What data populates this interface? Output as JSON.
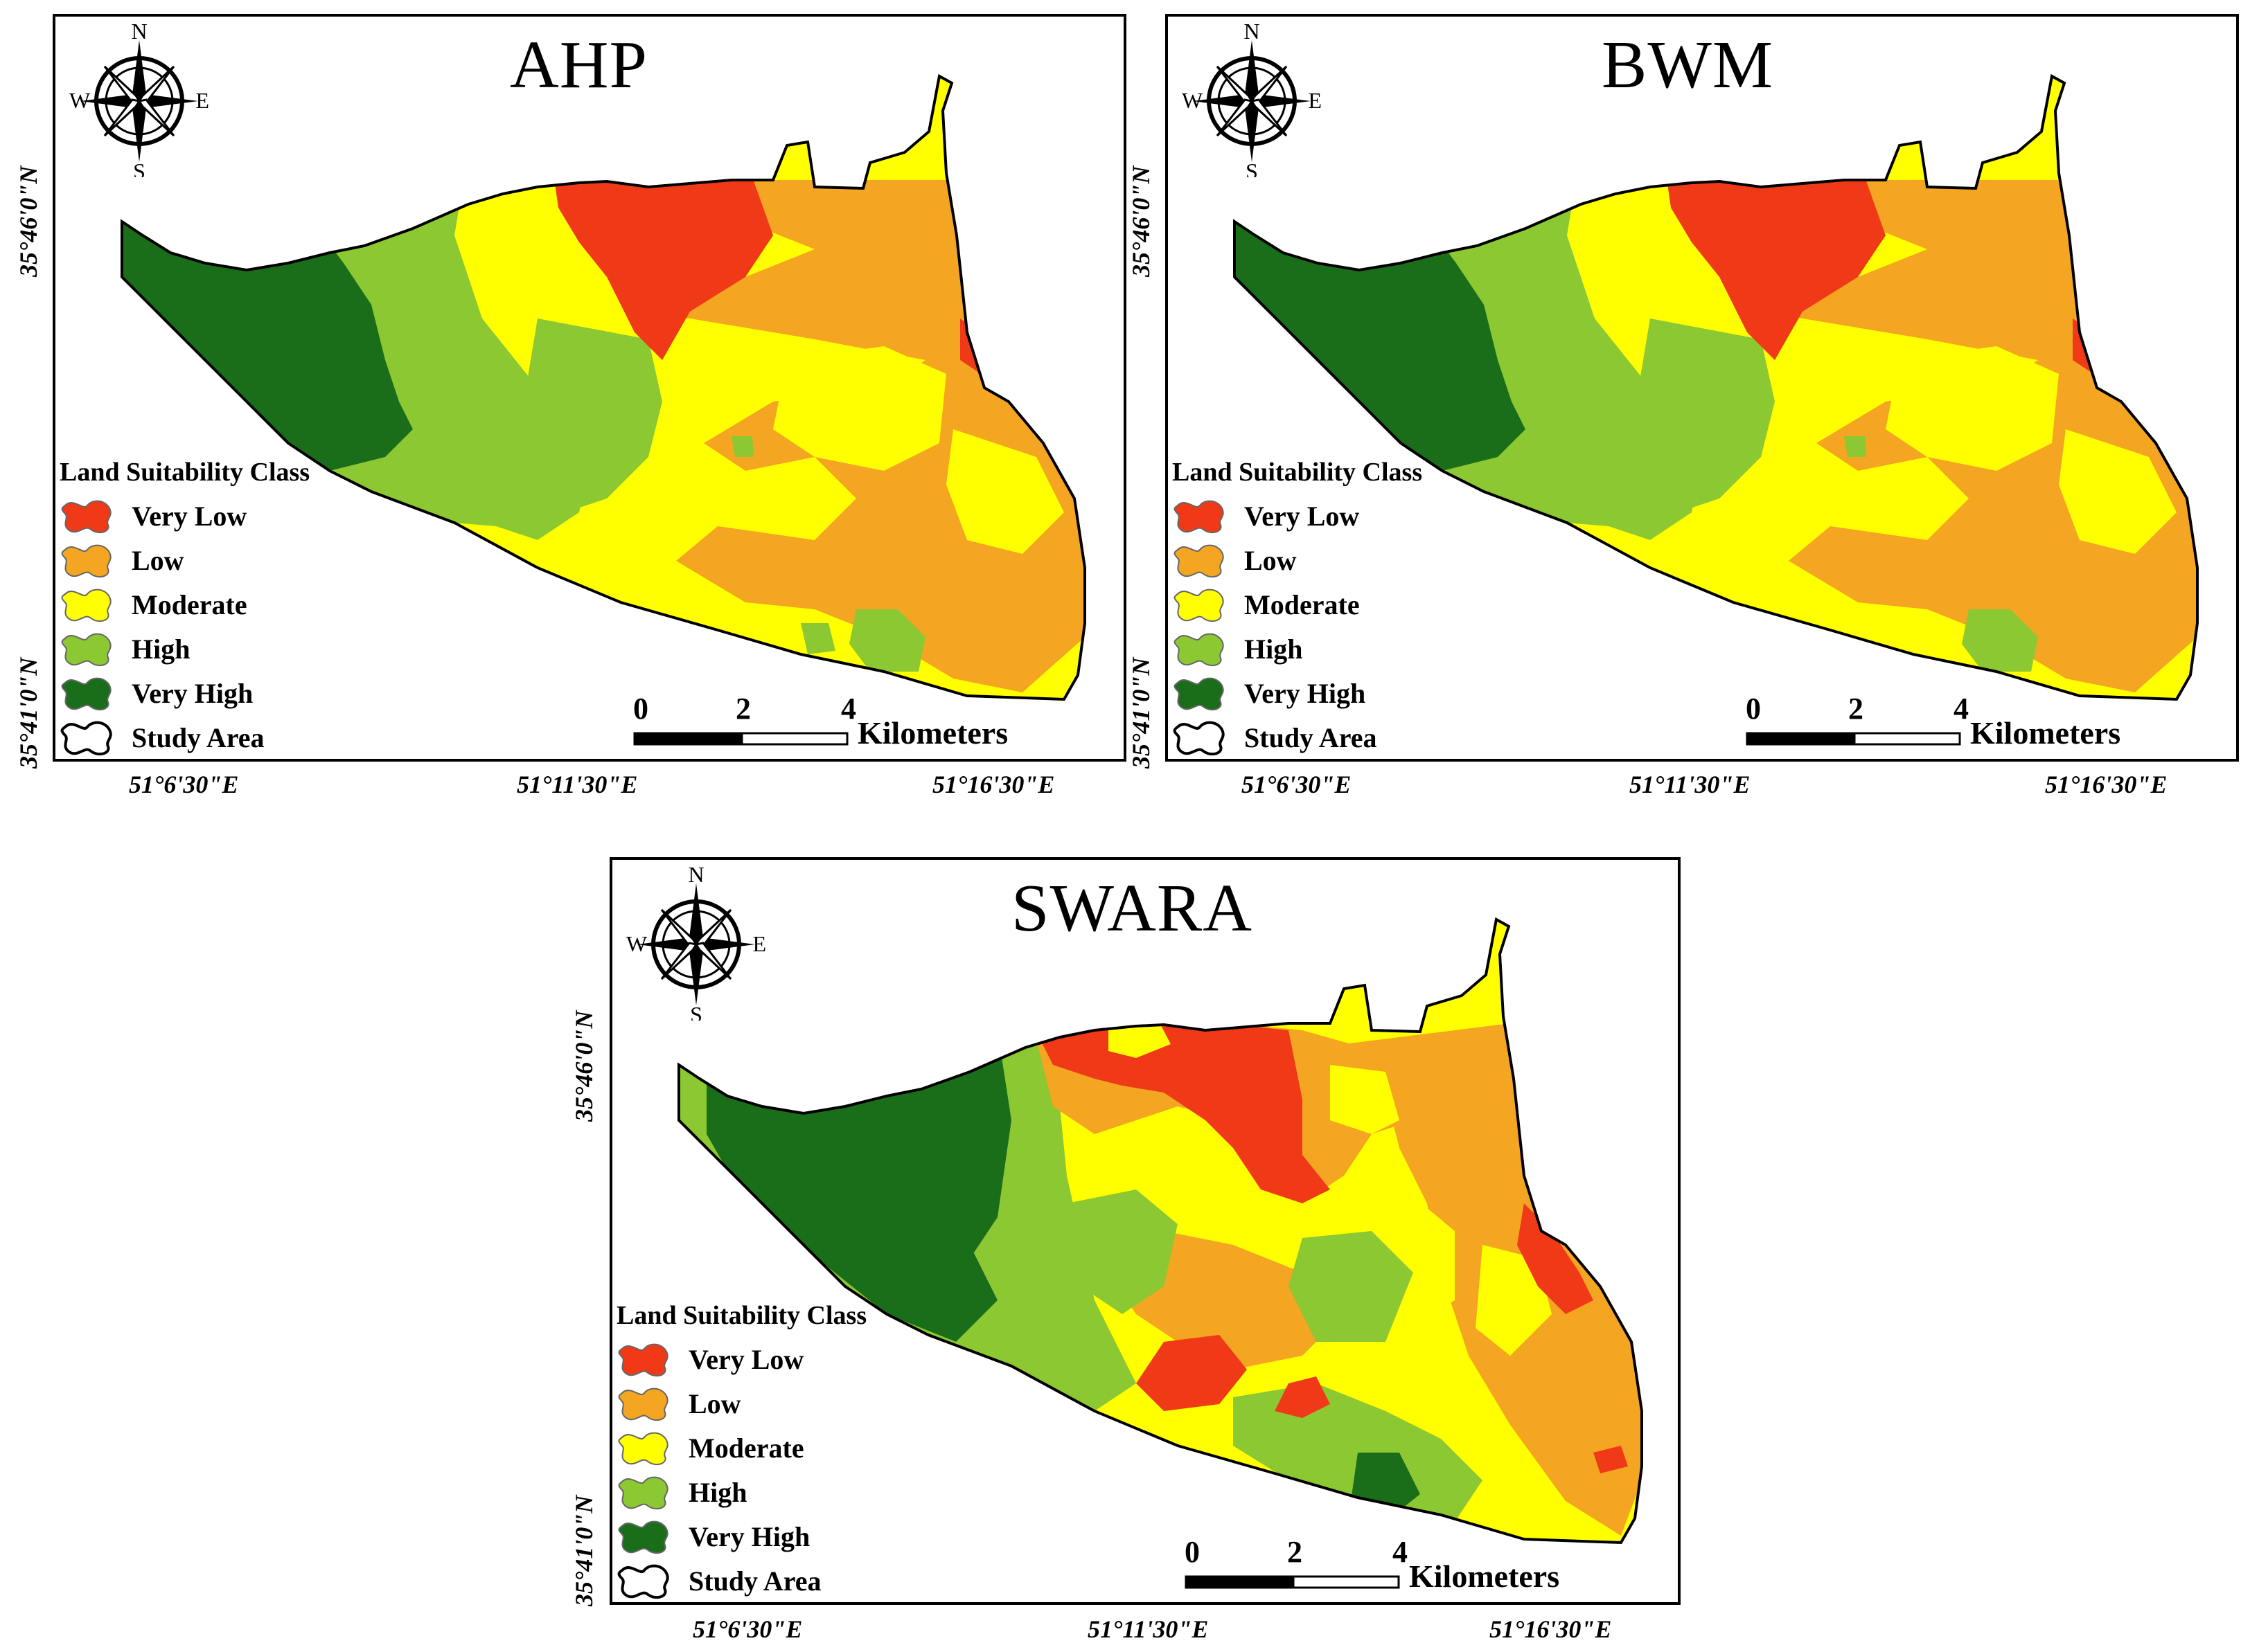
{
  "panels": [
    {
      "title": "AHP"
    },
    {
      "title": "BWM"
    },
    {
      "title": "SWARA"
    }
  ],
  "compass": {
    "icon": "compass-rose-icon",
    "north": "N",
    "south": "S",
    "east": "E",
    "west": "W"
  },
  "axes": {
    "lat_labels": [
      "35°46'0\"N",
      "35°41'0\"N"
    ],
    "lon_labels": [
      "51°6'30\"E",
      "51°11'30\"E",
      "51°16'30\"E"
    ]
  },
  "legend": {
    "title": "Land Suitability Class",
    "items": [
      {
        "label": "Very Low",
        "color": "#f03a17"
      },
      {
        "label": "Low",
        "color": "#f4a521"
      },
      {
        "label": "Moderate",
        "color": "#ffff00"
      },
      {
        "label": "High",
        "color": "#8cc832"
      },
      {
        "label": "Very High",
        "color": "#1a6e1a"
      },
      {
        "label": "Study Area",
        "color": "#ffffff"
      }
    ]
  },
  "scalebar": {
    "ticks": [
      "0",
      "2",
      "4"
    ],
    "unit": "Kilometers"
  }
}
